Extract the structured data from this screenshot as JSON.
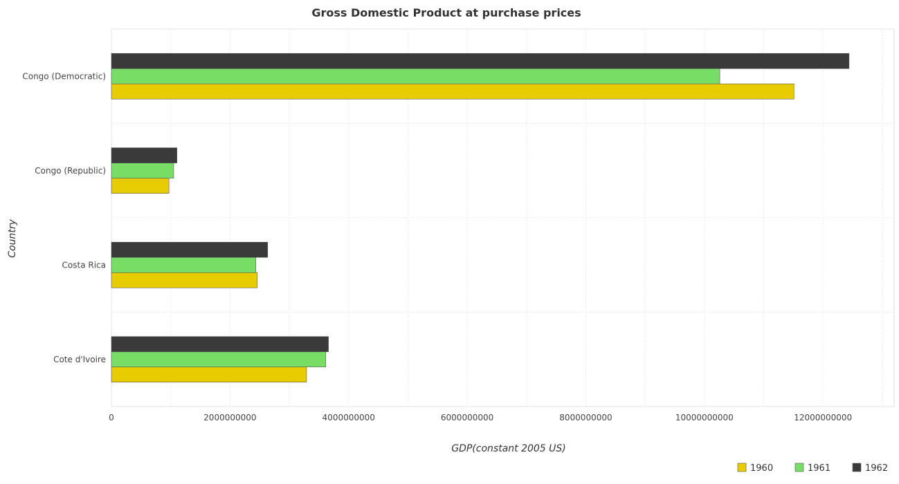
{
  "chart_data": {
    "type": "bar",
    "orientation": "horizontal",
    "title": "Gross Domestic Product at purchase prices",
    "xlabel": "GDP(constant 2005 US)",
    "ylabel": "Country",
    "categories": [
      "Congo (Democratic)",
      "Congo (Republic)",
      "Costa Rica",
      "Cote d'Ivoire"
    ],
    "series": [
      {
        "name": "1960",
        "color": "#e6cc00",
        "values": [
          11510000000,
          970000000,
          2460000000,
          3290000000
        ]
      },
      {
        "name": "1961",
        "color": "#77dd66",
        "values": [
          10260000000,
          1050000000,
          2435000000,
          3615000000
        ]
      },
      {
        "name": "1962",
        "color": "#3a3a3a",
        "values": [
          12440000000,
          1105000000,
          2635000000,
          3660000000
        ]
      }
    ],
    "xlim": [
      0,
      13200000000
    ],
    "xticks": [
      0,
      2000000000,
      4000000000,
      6000000000,
      8000000000,
      10000000000,
      12000000000
    ],
    "xtick_labels": [
      "0",
      "2000000000",
      "4000000000",
      "6000000000",
      "8000000000",
      "10000000000",
      "12000000000"
    ],
    "grid": true,
    "legend_position": "bottom-right"
  }
}
